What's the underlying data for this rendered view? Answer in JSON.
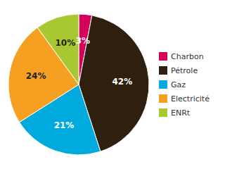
{
  "chart_data": {
    "type": "pie",
    "categories": [
      "Charbon",
      "Pétrole",
      "Gaz",
      "Electricité",
      "ENRt"
    ],
    "values": [
      3,
      42,
      21,
      24,
      10
    ],
    "value_labels": [
      "3%",
      "42%",
      "21%",
      "24%",
      "10%"
    ],
    "colors": [
      "#d4005a",
      "#2e1f0f",
      "#00aadc",
      "#f5a020",
      "#a8c832"
    ],
    "data_labels": true,
    "legend": "right"
  }
}
